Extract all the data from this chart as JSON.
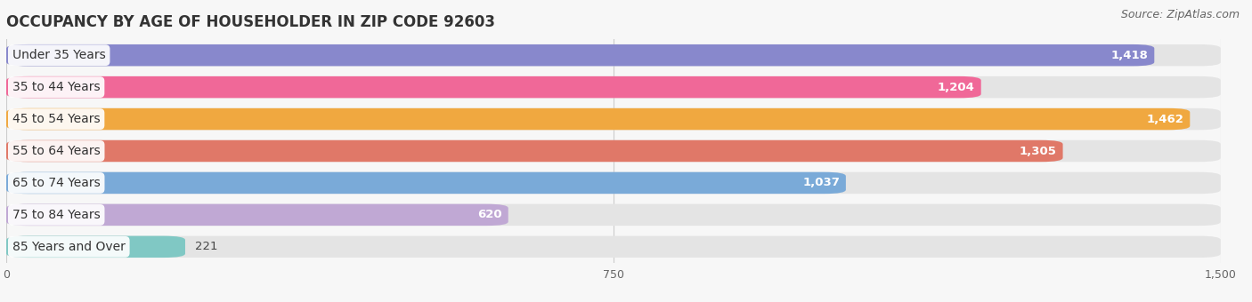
{
  "title": "OCCUPANCY BY AGE OF HOUSEHOLDER IN ZIP CODE 92603",
  "source": "Source: ZipAtlas.com",
  "categories": [
    "Under 35 Years",
    "35 to 44 Years",
    "45 to 54 Years",
    "55 to 64 Years",
    "65 to 74 Years",
    "75 to 84 Years",
    "85 Years and Over"
  ],
  "values": [
    1418,
    1204,
    1462,
    1305,
    1037,
    620,
    221
  ],
  "bar_colors": [
    "#8888cc",
    "#f06898",
    "#f0a840",
    "#e07868",
    "#7aaad8",
    "#c0a8d4",
    "#80c8c4"
  ],
  "xlim": [
    0,
    1500
  ],
  "xticks": [
    0,
    750,
    1500
  ],
  "title_fontsize": 12,
  "bar_height": 0.68,
  "background_color": "#f7f7f7",
  "bar_bg_color": "#e4e4e4",
  "label_fontsize": 10,
  "value_fontsize": 9.5,
  "source_fontsize": 9,
  "value_inside_threshold": 400
}
